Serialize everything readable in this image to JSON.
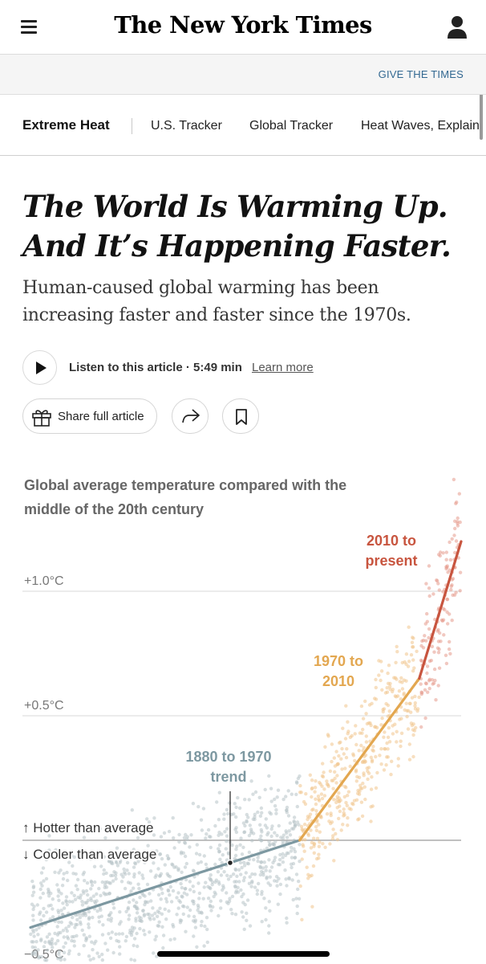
{
  "header": {
    "logo": "The New York Times",
    "promo_link": "GIVE THE TIMES"
  },
  "section_nav": {
    "home": "Extreme Heat",
    "items": [
      "U.S. Tracker",
      "Global Tracker",
      "Heat Waves, Explain"
    ]
  },
  "article": {
    "headline_line1": "The World Is Warming Up.",
    "headline_line2": "And It’s Happening Faster.",
    "summary": "Human-caused global warming has been increasing faster and faster since the 1970s.",
    "listen_text": "Listen to this article · 5:49 min",
    "learn_more": "Learn more",
    "share_label": "Share full article"
  },
  "colors": {
    "trend_1880": "#7d98a1",
    "trend_1970": "#e3a750",
    "trend_2010": "#c8553f",
    "link": "#326891"
  },
  "chart_data": {
    "type": "scatter",
    "title": "Global average temperature compared with the middle of the 20th century",
    "xlabel": "",
    "ylabel": "",
    "ylim": [
      -0.5,
      1.3
    ],
    "y_ticks": [
      "+1.0°C",
      "+0.5°C",
      "−0.5°C"
    ],
    "y_tick_values": [
      1.0,
      0.5,
      -0.5
    ],
    "zero_labels": {
      "above": "↑ Hotter than average",
      "below": "↓ Cooler than average"
    },
    "trends": [
      {
        "name": "1880 to 1970 trend",
        "line1": "1880 to 1970",
        "line2": "trend",
        "start": [
          1880,
          -0.35
        ],
        "end": [
          1970,
          0.0
        ],
        "color": "#7d98a1"
      },
      {
        "name": "1970 to 2010",
        "line1": "1970 to",
        "line2": "2010",
        "start": [
          1970,
          0.0
        ],
        "end": [
          2010,
          0.65
        ],
        "color": "#e3a750"
      },
      {
        "name": "2010 to present",
        "line1": "2010 to",
        "line2": "present",
        "start": [
          2010,
          0.65
        ],
        "end": [
          2024,
          1.2
        ],
        "color": "#c8553f"
      }
    ],
    "x_range": [
      1880,
      2024
    ]
  }
}
